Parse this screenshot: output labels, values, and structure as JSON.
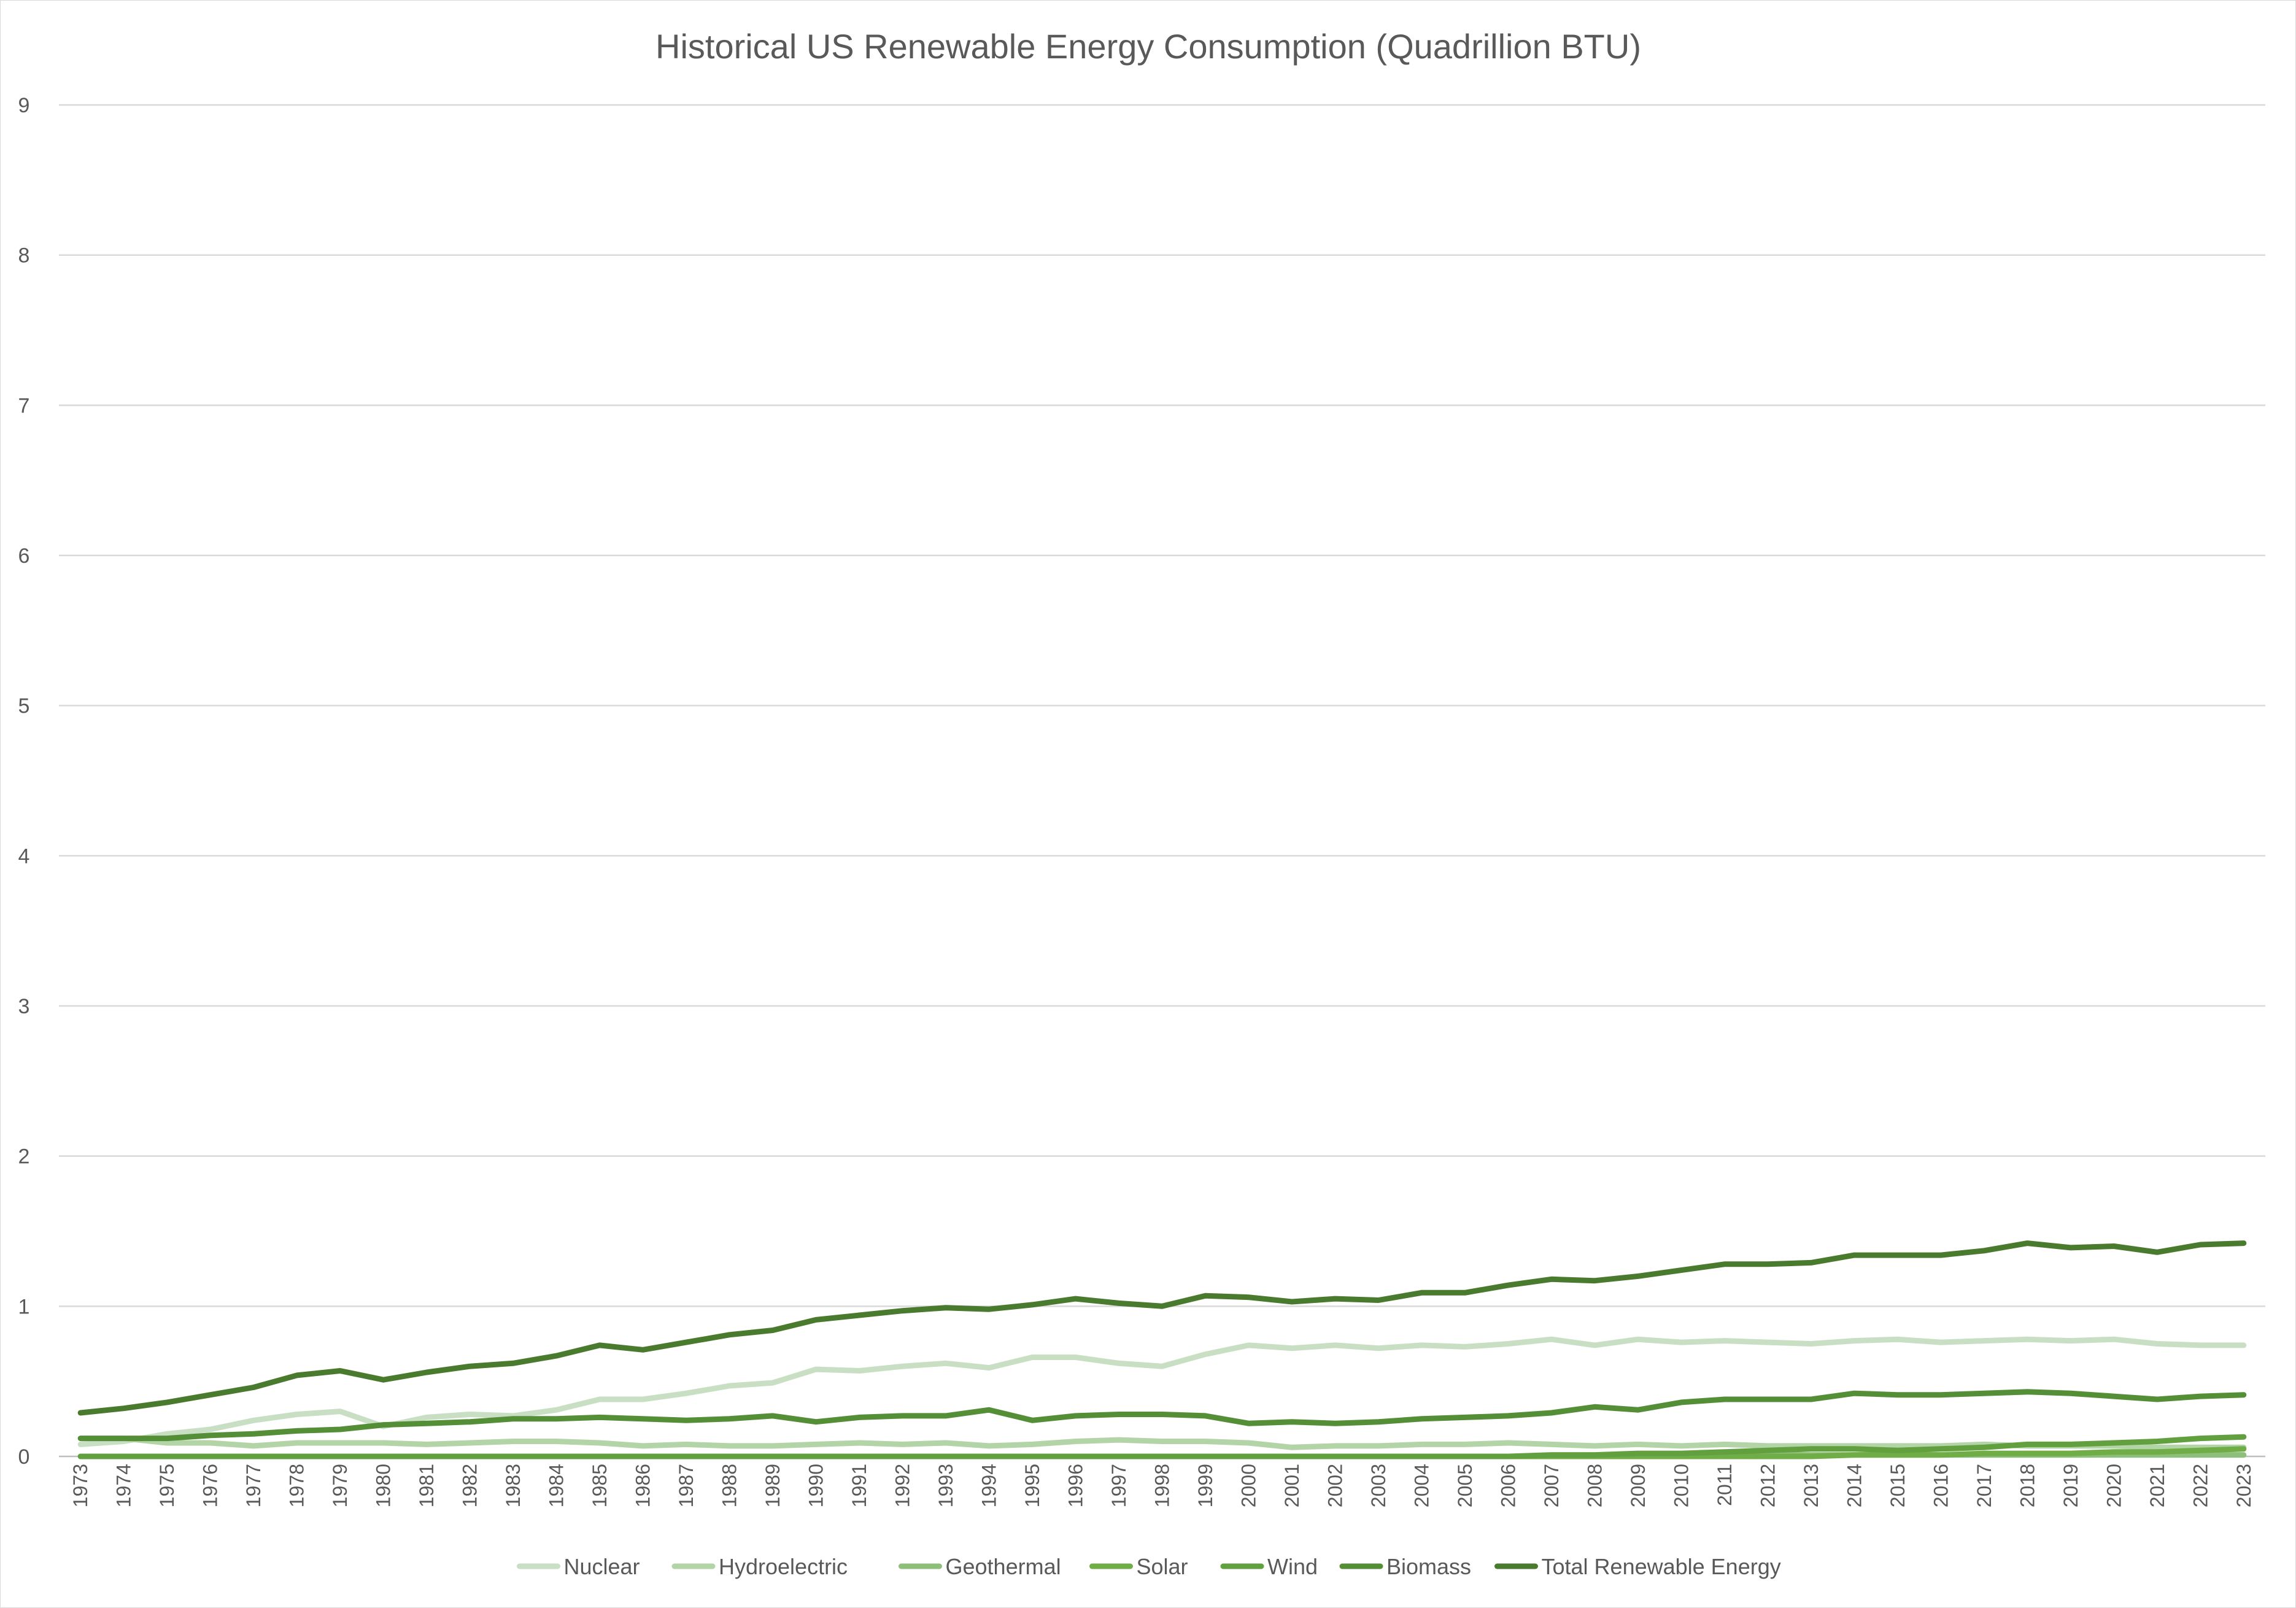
{
  "chart_data": {
    "type": "line",
    "title": "Historical US Renewable Energy Consumption (Quadrillion BTU)",
    "xlabel": "",
    "ylabel": "",
    "ylim": [
      0,
      9
    ],
    "y_ticks": [
      "0",
      "1",
      "2",
      "3",
      "4",
      "5",
      "6",
      "7",
      "8",
      "9"
    ],
    "grid": "horizontal",
    "legend_position": "bottom",
    "categories": [
      "1973",
      "1974",
      "1975",
      "1976",
      "1977",
      "1978",
      "1979",
      "1980",
      "1981",
      "1982",
      "1983",
      "1984",
      "1985",
      "1986",
      "1987",
      "1988",
      "1989",
      "1990",
      "1991",
      "1992",
      "1993",
      "1994",
      "1995",
      "1996",
      "1997",
      "1998",
      "1999",
      "2000",
      "2001",
      "2002",
      "2003",
      "2004",
      "2005",
      "2006",
      "2007",
      "2008",
      "2009",
      "2010",
      "2011",
      "2012",
      "2013",
      "2014",
      "2015",
      "2016",
      "2017",
      "2018",
      "2019",
      "2020",
      "2021",
      "2022",
      "2023"
    ],
    "series": [
      {
        "name": "Nuclear",
        "color": "#c9dfc3",
        "values": [
          0.08,
          0.1,
          0.15,
          0.18,
          0.24,
          0.28,
          0.3,
          0.2,
          0.26,
          0.28,
          0.27,
          0.31,
          0.38,
          0.38,
          0.42,
          0.47,
          0.49,
          0.58,
          0.57,
          0.6,
          0.62,
          0.59,
          0.66,
          0.66,
          0.62,
          0.6,
          0.68,
          0.74,
          0.72,
          0.74,
          0.72,
          0.74,
          0.73,
          0.75,
          0.78,
          0.74,
          0.78,
          0.76,
          0.77,
          0.76,
          0.75,
          0.77,
          0.78,
          0.76,
          0.77,
          0.78,
          0.77,
          0.78,
          0.75,
          0.74,
          0.74
        ]
      },
      {
        "name": "Hydroelectric",
        "color": "#b3d4a7",
        "values": [
          0.12,
          0.12,
          0.09,
          0.09,
          0.07,
          0.09,
          0.09,
          0.09,
          0.08,
          0.09,
          0.1,
          0.1,
          0.09,
          0.07,
          0.08,
          0.07,
          0.07,
          0.08,
          0.09,
          0.08,
          0.09,
          0.07,
          0.08,
          0.1,
          0.11,
          0.1,
          0.1,
          0.09,
          0.06,
          0.07,
          0.07,
          0.08,
          0.08,
          0.09,
          0.08,
          0.07,
          0.08,
          0.07,
          0.08,
          0.07,
          0.07,
          0.07,
          0.07,
          0.07,
          0.08,
          0.07,
          0.07,
          0.07,
          0.06,
          0.06,
          0.06
        ]
      },
      {
        "name": "Geothermal",
        "color": "#8dbf7a",
        "values": [
          0.0,
          0.0,
          0.0,
          0.0,
          0.0,
          0.0,
          0.0,
          0.0,
          0.0,
          0.0,
          0.0,
          0.0,
          0.0,
          0.0,
          0.0,
          0.0,
          0.0,
          0.0,
          0.0,
          0.0,
          0.0,
          0.0,
          0.0,
          0.0,
          0.0,
          0.0,
          0.0,
          0.0,
          0.0,
          0.0,
          0.0,
          0.0,
          0.0,
          0.0,
          0.0,
          0.0,
          0.0,
          0.0,
          0.01,
          0.01,
          0.01,
          0.01,
          0.01,
          0.01,
          0.01,
          0.01,
          0.01,
          0.01,
          0.01,
          0.01,
          0.01
        ]
      },
      {
        "name": "Solar",
        "color": "#70ad47",
        "values": [
          0.0,
          0.0,
          0.0,
          0.0,
          0.0,
          0.0,
          0.0,
          0.0,
          0.0,
          0.0,
          0.0,
          0.0,
          0.0,
          0.0,
          0.0,
          0.0,
          0.0,
          0.0,
          0.0,
          0.0,
          0.0,
          0.0,
          0.0,
          0.0,
          0.0,
          0.0,
          0.0,
          0.0,
          0.0,
          0.0,
          0.0,
          0.0,
          0.0,
          0.0,
          0.0,
          0.0,
          0.0,
          0.0,
          0.0,
          0.0,
          0.0,
          0.01,
          0.01,
          0.01,
          0.02,
          0.02,
          0.02,
          0.03,
          0.03,
          0.04,
          0.05
        ]
      },
      {
        "name": "Wind",
        "color": "#62a03f",
        "values": [
          0.0,
          0.0,
          0.0,
          0.0,
          0.0,
          0.0,
          0.0,
          0.0,
          0.0,
          0.0,
          0.0,
          0.0,
          0.0,
          0.0,
          0.0,
          0.0,
          0.0,
          0.0,
          0.0,
          0.0,
          0.0,
          0.0,
          0.0,
          0.0,
          0.0,
          0.0,
          0.0,
          0.0,
          0.0,
          0.0,
          0.0,
          0.0,
          0.0,
          0.0,
          0.01,
          0.01,
          0.02,
          0.02,
          0.03,
          0.04,
          0.05,
          0.05,
          0.04,
          0.05,
          0.06,
          0.08,
          0.08,
          0.09,
          0.1,
          0.12,
          0.13
        ]
      },
      {
        "name": "Biomass",
        "color": "#548f37",
        "values": [
          0.12,
          0.12,
          0.12,
          0.14,
          0.15,
          0.17,
          0.18,
          0.21,
          0.22,
          0.23,
          0.25,
          0.25,
          0.26,
          0.25,
          0.24,
          0.25,
          0.27,
          0.23,
          0.26,
          0.27,
          0.27,
          0.31,
          0.24,
          0.27,
          0.28,
          0.28,
          0.27,
          0.22,
          0.23,
          0.22,
          0.23,
          0.25,
          0.26,
          0.27,
          0.29,
          0.33,
          0.31,
          0.36,
          0.38,
          0.38,
          0.38,
          0.42,
          0.41,
          0.41,
          0.42,
          0.43,
          0.42,
          0.4,
          0.38,
          0.4,
          0.41
        ]
      },
      {
        "name": "Total Renewable Energy",
        "color": "#4a7a2e",
        "values": [
          0.29,
          0.32,
          0.36,
          0.41,
          0.46,
          0.54,
          0.57,
          0.51,
          0.56,
          0.6,
          0.62,
          0.67,
          0.74,
          0.71,
          0.76,
          0.81,
          0.84,
          0.91,
          0.94,
          0.97,
          0.99,
          0.98,
          1.01,
          1.05,
          1.02,
          1.0,
          1.07,
          1.06,
          1.03,
          1.05,
          1.04,
          1.09,
          1.09,
          1.14,
          1.18,
          1.17,
          1.2,
          1.24,
          1.28,
          1.28,
          1.29,
          1.34,
          1.34,
          1.34,
          1.37,
          1.42,
          1.39,
          1.4,
          1.36,
          1.41,
          1.42
        ]
      }
    ]
  }
}
